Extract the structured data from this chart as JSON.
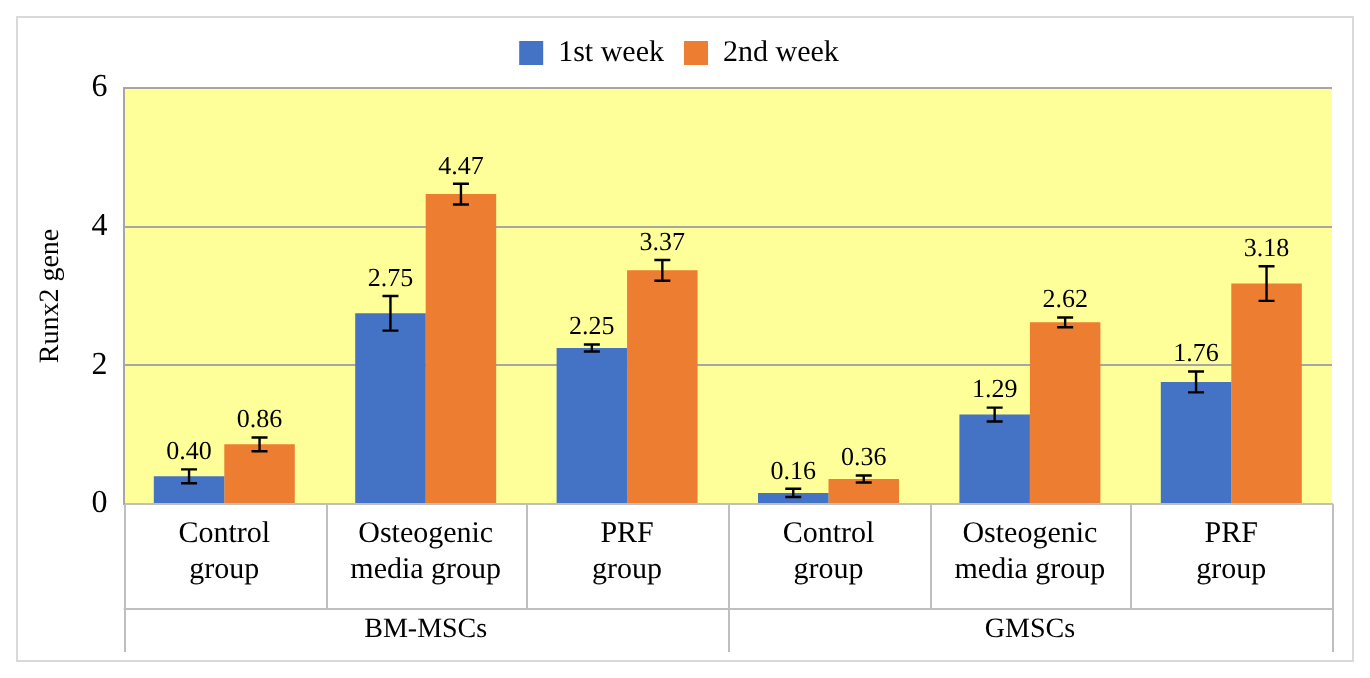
{
  "chart_data": {
    "type": "bar",
    "ylabel": "Runx2 gene",
    "categories": [
      "Control group",
      "Osteogenic media group",
      "PRF group",
      "Control group",
      "Osteogenic media group",
      "PRF group"
    ],
    "series": [
      {
        "name": "1st week",
        "color": "#4472c4",
        "values": [
          0.4,
          2.75,
          2.25,
          0.16,
          1.29,
          1.76
        ],
        "errors": [
          0.1,
          0.25,
          0.05,
          0.06,
          0.1,
          0.15
        ],
        "value_labels": [
          "0.40",
          "2.75",
          "2.25",
          "0.16",
          "1.29",
          "1.76"
        ]
      },
      {
        "name": "2nd week",
        "color": "#ed7d31",
        "values": [
          0.86,
          4.47,
          3.37,
          0.36,
          2.62,
          3.18
        ],
        "errors": [
          0.1,
          0.15,
          0.15,
          0.05,
          0.07,
          0.25
        ],
        "value_labels": [
          "0.86",
          "4.47",
          "3.37",
          "0.36",
          "2.62",
          "3.18"
        ]
      }
    ],
    "ylim": [
      0,
      6
    ],
    "yticks": [
      0,
      2,
      4,
      6
    ],
    "grid": "y",
    "legend": "top",
    "annotations": [
      "BM-MSCs",
      "GMSCs"
    ]
  }
}
